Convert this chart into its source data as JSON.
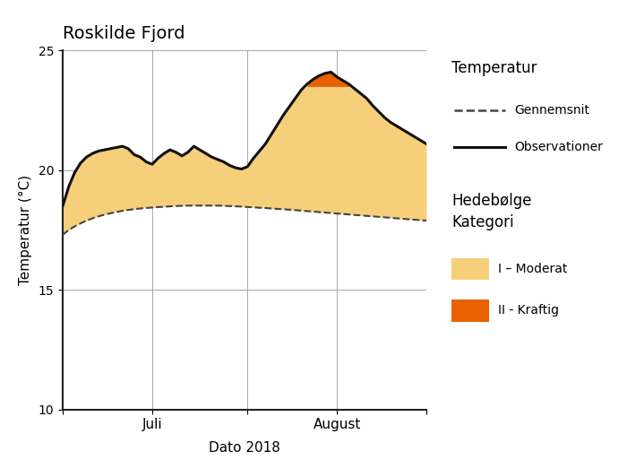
{
  "title": "Roskilde Fjord",
  "xlabel": "Dato 2018",
  "ylabel": "Temperatur (°C)",
  "ylim": [
    10,
    25
  ],
  "yticks": [
    10,
    15,
    20,
    25
  ],
  "background_color": "#ffffff",
  "legend_temp_title": "Temperatur",
  "legend_hede_title": "Hedebølge\nKategori",
  "legend_avg_label": "Gennemsnit",
  "legend_obs_label": "Observationer",
  "legend_cat1_label": "I – Moderat",
  "legend_cat2_label": "II - Kraftig",
  "color_moderat": "#F5CF7A",
  "color_kraftig": "#E86000",
  "color_obs": "#111111",
  "color_avg": "#444444",
  "num_days": 62,
  "avg_temps": [
    17.3,
    17.5,
    17.65,
    17.78,
    17.89,
    17.99,
    18.07,
    18.14,
    18.2,
    18.25,
    18.3,
    18.34,
    18.37,
    18.4,
    18.42,
    18.44,
    18.46,
    18.47,
    18.49,
    18.5,
    18.51,
    18.52,
    18.52,
    18.52,
    18.52,
    18.52,
    18.52,
    18.51,
    18.5,
    18.49,
    18.48,
    18.46,
    18.45,
    18.43,
    18.42,
    18.4,
    18.38,
    18.37,
    18.35,
    18.33,
    18.31,
    18.29,
    18.27,
    18.25,
    18.23,
    18.21,
    18.19,
    18.17,
    18.15,
    18.13,
    18.11,
    18.09,
    18.07,
    18.05,
    18.03,
    18.01,
    17.99,
    17.97,
    17.95,
    17.93,
    17.91,
    17.89
  ],
  "obs_temps": [
    18.5,
    19.3,
    19.9,
    20.3,
    20.55,
    20.7,
    20.8,
    20.85,
    20.9,
    20.95,
    21.0,
    20.9,
    20.65,
    20.55,
    20.35,
    20.25,
    20.5,
    20.7,
    20.85,
    20.75,
    20.6,
    20.75,
    21.0,
    20.85,
    20.7,
    20.55,
    20.45,
    20.35,
    20.2,
    20.1,
    20.05,
    20.15,
    20.5,
    20.8,
    21.1,
    21.5,
    21.9,
    22.3,
    22.65,
    23.0,
    23.35,
    23.6,
    23.8,
    23.95,
    24.05,
    24.1,
    23.9,
    23.75,
    23.6,
    23.4,
    23.2,
    23.0,
    22.7,
    22.45,
    22.2,
    22.0,
    21.85,
    21.7,
    21.55,
    21.4,
    21.25,
    21.1
  ],
  "heatwave_threshold_2": 23.5,
  "grid_color": "#999999",
  "grid_linewidth": 0.6,
  "xtick_positions": [
    0,
    15,
    31,
    46,
    61
  ],
  "xtick_labels": [
    "",
    "Juli",
    "",
    "August",
    ""
  ]
}
